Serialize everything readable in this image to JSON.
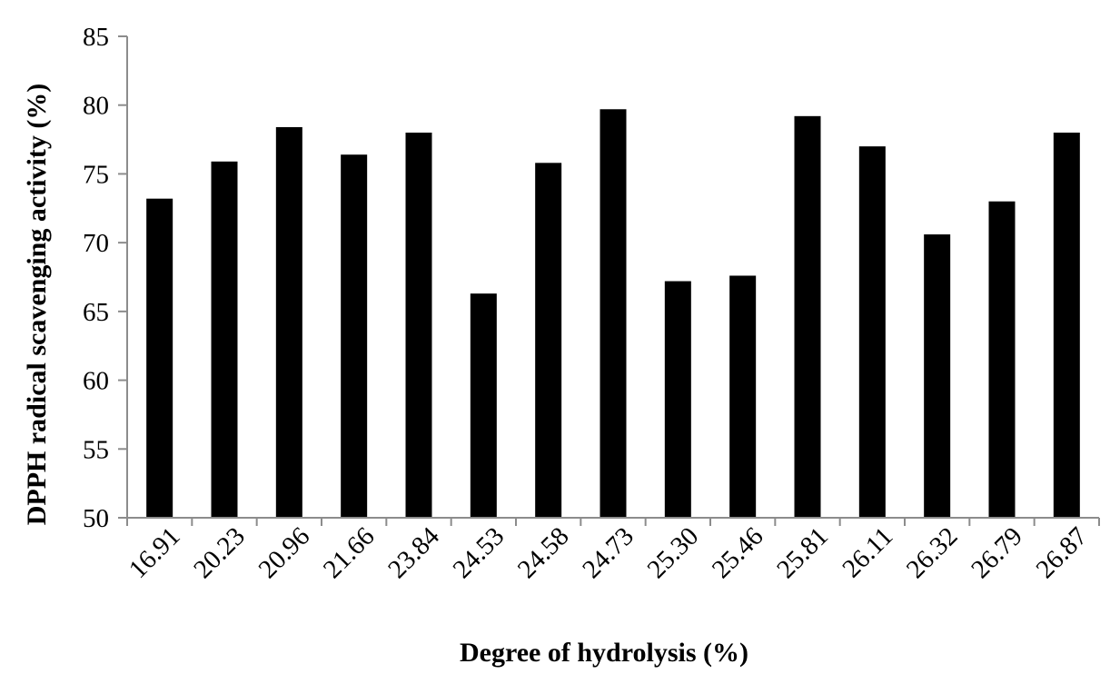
{
  "chart_data": {
    "type": "bar",
    "title": "",
    "xlabel": "Degree of hydrolysis (%)",
    "ylabel": "DPPH radical scavenging activity (%)",
    "ylim": [
      50,
      85
    ],
    "yticks": [
      50,
      55,
      60,
      65,
      70,
      75,
      80,
      85
    ],
    "categories": [
      "16.91",
      "20.23",
      "20.96",
      "21.66",
      "23.84",
      "24.53",
      "24.58",
      "24.73",
      "25.30",
      "25.46",
      "25.81",
      "26.11",
      "26.32",
      "26.79",
      "26.87"
    ],
    "values": [
      73.2,
      75.9,
      78.4,
      76.4,
      78.0,
      66.3,
      75.8,
      79.7,
      67.2,
      67.6,
      79.2,
      77.0,
      70.6,
      73.0,
      78.0
    ],
    "bar_color": "#000000",
    "axis_color": "#8c8c8c",
    "grid": false,
    "legend": "none"
  }
}
